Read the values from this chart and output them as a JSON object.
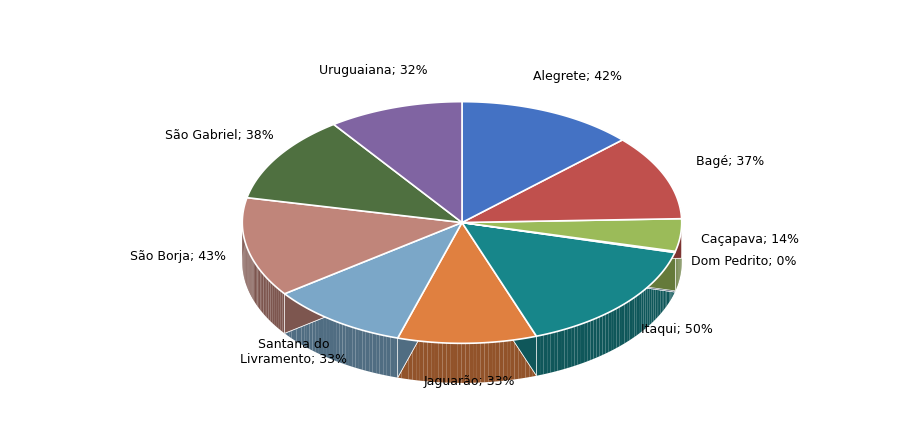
{
  "labels": [
    "Alegrete; 42%",
    "Bagé; 37%",
    "Caçapava; 14%",
    "Dom Pedrito; 0%",
    "Itaqui; 50%",
    "Jaguarão; 33%",
    "Santana do\nLivramento; 33%",
    "São Borja; 43%",
    "São Gabriel; 38%",
    "Uruguaiana; 32%"
  ],
  "values": [
    42,
    37,
    14,
    0.5,
    50,
    33,
    33,
    43,
    38,
    32
  ],
  "colors": [
    "#4472C4",
    "#C0504D",
    "#9BBB59",
    "#1F3864",
    "#17868A",
    "#E08040",
    "#7BA7C8",
    "#C0857A",
    "#4F7040",
    "#8064A2"
  ],
  "figsize": [
    9.24,
    4.45
  ],
  "dpi": 100,
  "startangle": 90
}
